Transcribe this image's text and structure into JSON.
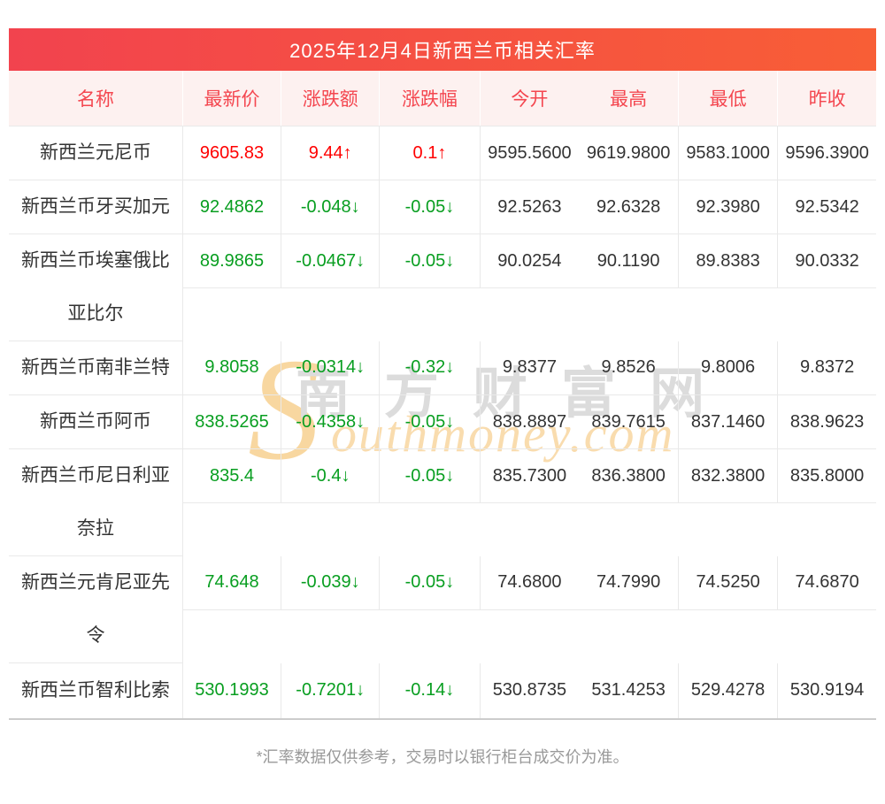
{
  "title": "2025年12月4日新西兰币相关汇率",
  "colors": {
    "up": "#ff0000",
    "down": "#089e20",
    "header_bg": "#fdf1f0",
    "header_text": "#f4464f",
    "title_bar_gradient_left": "#f2434e",
    "title_bar_gradient_right": "#f85e36",
    "row_border": "#e9e9e9",
    "table_bottom_border": "#cccccc",
    "body_text": "#333333",
    "footer_text": "#999999"
  },
  "table": {
    "headers": [
      "名称",
      "最新价",
      "涨跌额",
      "涨跌幅",
      "今开",
      "最高",
      "最低",
      "昨收"
    ],
    "rows": [
      {
        "name": "新西兰元尼币",
        "last": "9605.83",
        "change": "9.44↑",
        "pct": "0.1↑",
        "open": "9595.5600",
        "high": "9619.9800",
        "low": "9583.1000",
        "prev": "9596.3900",
        "trend": "up",
        "wrapped": false
      },
      {
        "name": "新西兰币牙买加元",
        "last": "92.4862",
        "change": "-0.048↓",
        "pct": "-0.05↓",
        "open": "92.5263",
        "high": "92.6328",
        "low": "92.3980",
        "prev": "92.5342",
        "trend": "down",
        "wrapped": false
      },
      {
        "name": "新西兰币埃塞俄比亚比尔",
        "last": "89.9865",
        "change": "-0.0467↓",
        "pct": "-0.05↓",
        "open": "90.0254",
        "high": "90.1190",
        "low": "89.8383",
        "prev": "90.0332",
        "trend": "down",
        "wrapped": true
      },
      {
        "name": "新西兰币南非兰特",
        "last": "9.8058",
        "change": "-0.0314↓",
        "pct": "-0.32↓",
        "open": "9.8377",
        "high": "9.8526",
        "low": "9.8006",
        "prev": "9.8372",
        "trend": "down",
        "wrapped": false
      },
      {
        "name": "新西兰币阿币",
        "last": "838.5265",
        "change": "-0.4358↓",
        "pct": "-0.05↓",
        "open": "838.8897",
        "high": "839.7615",
        "low": "837.1460",
        "prev": "838.9623",
        "trend": "down",
        "wrapped": false
      },
      {
        "name": "新西兰币尼日利亚奈拉",
        "last": "835.4",
        "change": "-0.4↓",
        "pct": "-0.05↓",
        "open": "835.7300",
        "high": "836.3800",
        "low": "832.3800",
        "prev": "835.8000",
        "trend": "down",
        "wrapped": true
      },
      {
        "name": "新西兰元肯尼亚先令",
        "last": "74.648",
        "change": "-0.039↓",
        "pct": "-0.05↓",
        "open": "74.6800",
        "high": "74.7990",
        "low": "74.5250",
        "prev": "74.6870",
        "trend": "down",
        "wrapped": true
      },
      {
        "name": "新西兰币智利比索",
        "last": "530.1993",
        "change": "-0.7201↓",
        "pct": "-0.14↓",
        "open": "530.8735",
        "high": "531.4253",
        "low": "529.4278",
        "prev": "530.9194",
        "trend": "down",
        "wrapped": false
      }
    ]
  },
  "watermark": {
    "initial": "S",
    "site_name": "南方财富网",
    "domain_text": "outhmoney.com"
  },
  "footer": {
    "note": "*汇率数据仅供参考，交易时以银行柜台成交价为准。"
  }
}
